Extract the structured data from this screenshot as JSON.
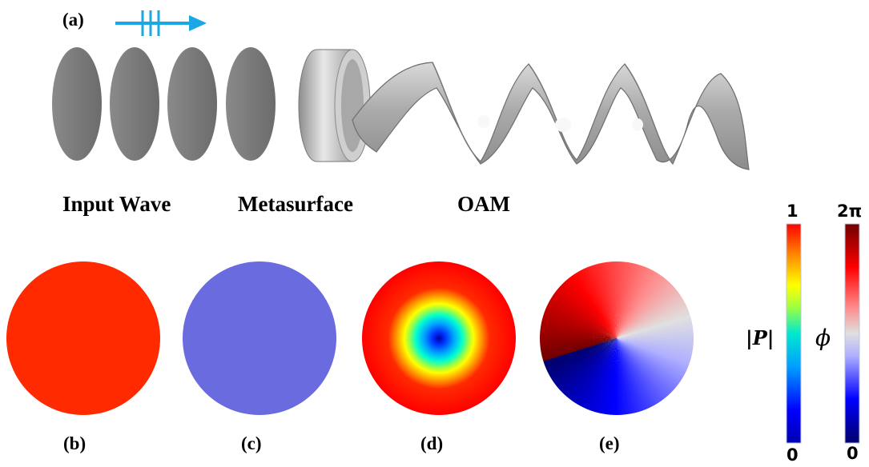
{
  "labels": {
    "panel_a": "(a)",
    "panel_b": "(b)",
    "panel_c": "(c)",
    "panel_d": "(d)",
    "panel_e": "(e)",
    "input_wave": "Input Wave",
    "metasurface": "Metasurface",
    "oam": "OAM"
  },
  "colorbars": {
    "amplitude": {
      "symbol": "|P|",
      "max": "1",
      "min": "0"
    },
    "phase": {
      "symbol": "ϕ",
      "max": "2π",
      "min": "0"
    }
  },
  "colors": {
    "arrow": "#1aa7e6",
    "wavefront": "#7a7a7a",
    "panel_b_fill": "#ff2a00",
    "panel_c_fill": "#6b6be0",
    "amplitude_map": [
      "#0000a0",
      "#0000ff",
      "#00a0ff",
      "#00ffd0",
      "#80ff60",
      "#ffff00",
      "#ffa000",
      "#ff3000",
      "#ff0000"
    ],
    "phase_map": [
      "#000080",
      "#0000ff",
      "#a0a0ff",
      "#d8d8d8",
      "#ff8080",
      "#ff0000",
      "#800000"
    ]
  }
}
